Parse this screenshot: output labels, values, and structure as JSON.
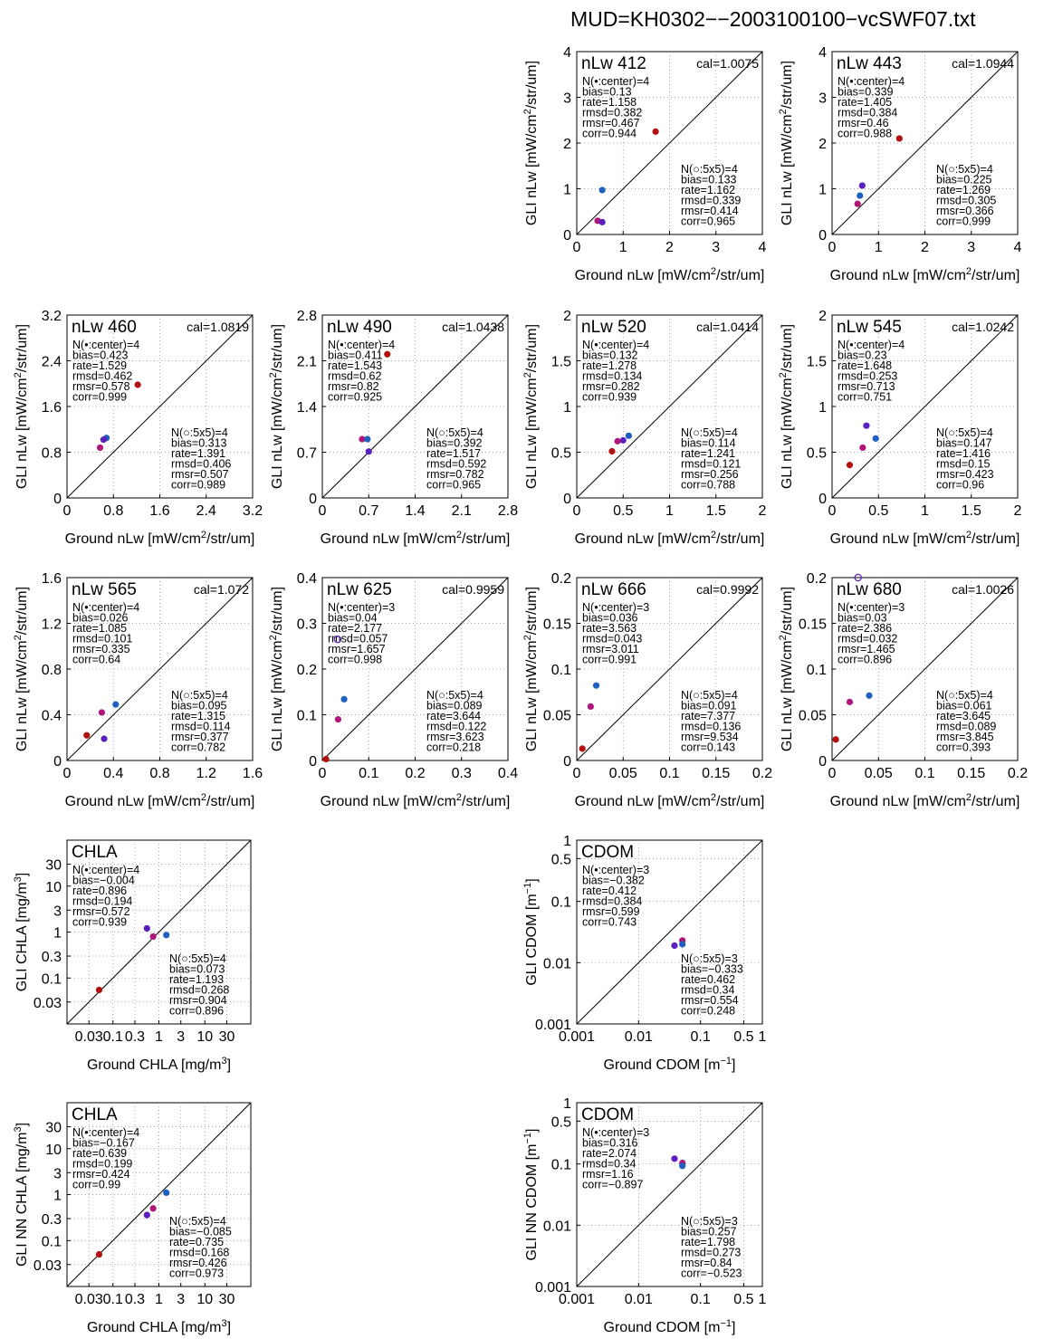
{
  "title": "MUD=KH0302−−2003100100−vcSWF07.txt",
  "chart_data": [
    {
      "type": "scatter",
      "name": "nLw 412",
      "cal": "cal=1.0075",
      "scale": "linear",
      "lim": [
        0,
        4
      ],
      "ticks": [
        0,
        1,
        2,
        3,
        4
      ],
      "tick_labels": [
        "0",
        "1",
        "2",
        "3",
        "4"
      ],
      "xlabel": "Ground nLw [mW/cm2/str/um]",
      "ylabel": "GLI nLw [mW/cm2/str/um]",
      "stats_center": [
        "N(•:center)=4",
        "bias=0.13",
        "rate=1.158",
        "rmsd=0.382",
        "rmsr=0.467",
        "corr=0.944"
      ],
      "stats_5x5": [
        "N(○:5x5)=4",
        "bias=0.133",
        "rate=1.162",
        "rmsd=0.339",
        "rmsr=0.414",
        "corr=0.965"
      ],
      "points": [
        {
          "x": 0.55,
          "y": 0.97,
          "c": "#1f5fbf"
        },
        {
          "x": 0.45,
          "y": 0.3,
          "c": "#b0157a"
        },
        {
          "x": 0.55,
          "y": 0.27,
          "c": "#5a1fbf"
        },
        {
          "x": 1.7,
          "y": 2.25,
          "c": "#b30f0f"
        }
      ]
    },
    {
      "type": "scatter",
      "name": "nLw 443",
      "cal": "cal=1.0944",
      "scale": "linear",
      "lim": [
        0,
        4
      ],
      "ticks": [
        0,
        1,
        2,
        3,
        4
      ],
      "tick_labels": [
        "0",
        "1",
        "2",
        "3",
        "4"
      ],
      "xlabel": "Ground nLw [mW/cm2/str/um]",
      "ylabel": "GLI nLw [mW/cm2/str/um]",
      "stats_center": [
        "N(•:center)=4",
        "bias=0.339",
        "rate=1.405",
        "rmsd=0.384",
        "rmsr=0.46",
        "corr=0.988"
      ],
      "stats_5x5": [
        "N(○:5x5)=4",
        "bias=0.225",
        "rate=1.269",
        "rmsd=0.305",
        "rmsr=0.366",
        "corr=0.999"
      ],
      "points": [
        {
          "x": 0.65,
          "y": 1.07,
          "c": "#5a1fbf"
        },
        {
          "x": 0.6,
          "y": 0.85,
          "c": "#1f5fbf"
        },
        {
          "x": 0.55,
          "y": 0.67,
          "c": "#b0157a"
        },
        {
          "x": 1.45,
          "y": 2.1,
          "c": "#b30f0f"
        }
      ]
    },
    {
      "type": "scatter",
      "name": "nLw 460",
      "cal": "cal=1.0819",
      "scale": "linear",
      "lim": [
        0,
        3.2
      ],
      "ticks": [
        0,
        0.8,
        1.6,
        2.4,
        3.2
      ],
      "tick_labels": [
        "0",
        "0.8",
        "1.6",
        "2.4",
        "3.2"
      ],
      "xlabel": "Ground nLw [mW/cm2/str/um]",
      "ylabel": "GLI nLw [mW/cm2/str/um]",
      "stats_center": [
        "N(•:center)=4",
        "bias=0.423",
        "rate=1.529",
        "rmsd=0.462",
        "rmsr=0.578",
        "corr=0.999"
      ],
      "stats_5x5": [
        "N(○:5x5)=4",
        "bias=0.313",
        "rate=1.391",
        "rmsd=0.406",
        "rmsr=0.507",
        "corr=0.989"
      ],
      "points": [
        {
          "x": 0.68,
          "y": 1.05,
          "c": "#1f5fbf"
        },
        {
          "x": 0.63,
          "y": 1.02,
          "c": "#5a1fbf"
        },
        {
          "x": 0.57,
          "y": 0.88,
          "c": "#b0157a"
        },
        {
          "x": 1.22,
          "y": 1.98,
          "c": "#b30f0f"
        }
      ]
    },
    {
      "type": "scatter",
      "name": "nLw 490",
      "cal": "cal=1.0438",
      "scale": "linear",
      "lim": [
        0,
        2.8
      ],
      "ticks": [
        0,
        0.7,
        1.4,
        2.1,
        2.8
      ],
      "tick_labels": [
        "0",
        "0.7",
        "1.4",
        "2.1",
        "2.8"
      ],
      "xlabel": "Ground nLw [mW/cm2/str/um]",
      "ylabel": "GLI nLw [mW/cm2/str/um]",
      "stats_center": [
        "N(•:center)=4",
        "bias=0.411",
        "rate=1.543",
        "rmsd=0.62",
        "rmsr=0.82",
        "corr=0.925"
      ],
      "stats_5x5": [
        "N(○:5x5)=4",
        "bias=0.392",
        "rate=1.517",
        "rmsd=0.592",
        "rmsr=0.782",
        "corr=0.965"
      ],
      "points": [
        {
          "x": 0.6,
          "y": 0.9,
          "c": "#b0157a"
        },
        {
          "x": 0.68,
          "y": 0.9,
          "c": "#1f5fbf"
        },
        {
          "x": 0.7,
          "y": 0.71,
          "c": "#5a1fbf"
        },
        {
          "x": 0.98,
          "y": 2.2,
          "c": "#b30f0f"
        }
      ]
    },
    {
      "type": "scatter",
      "name": "nLw 520",
      "cal": "cal=1.0414",
      "scale": "linear",
      "lim": [
        0,
        2
      ],
      "ticks": [
        0,
        0.5,
        1,
        1.5,
        2
      ],
      "tick_labels": [
        "0",
        "0.5",
        "1",
        "1.5",
        "2"
      ],
      "xlabel": "Ground nLw [mW/cm2/str/um]",
      "ylabel": "GLI nLw [mW/cm2/str/um]",
      "stats_center": [
        "N(•:center)=4",
        "bias=0.132",
        "rate=1.278",
        "rmsd=0.134",
        "rmsr=0.282",
        "corr=0.939"
      ],
      "stats_5x5": [
        "N(○:5x5)=4",
        "bias=0.114",
        "rate=1.241",
        "rmsd=0.121",
        "rmsr=0.256",
        "corr=0.788"
      ],
      "points": [
        {
          "x": 0.56,
          "y": 0.68,
          "c": "#1f5fbf"
        },
        {
          "x": 0.5,
          "y": 0.63,
          "c": "#5a1fbf"
        },
        {
          "x": 0.44,
          "y": 0.62,
          "c": "#b0157a"
        },
        {
          "x": 0.38,
          "y": 0.51,
          "c": "#b30f0f"
        }
      ]
    },
    {
      "type": "scatter",
      "name": "nLw 545",
      "cal": "cal=1.0242",
      "scale": "linear",
      "lim": [
        0,
        2
      ],
      "ticks": [
        0,
        0.5,
        1,
        1.5,
        2
      ],
      "tick_labels": [
        "0",
        "0.5",
        "1",
        "1.5",
        "2"
      ],
      "xlabel": "Ground nLw [mW/cm2/str/um]",
      "ylabel": "GLI nLw [mW/cm2/str/um]",
      "stats_center": [
        "N(•:center)=4",
        "bias=0.23",
        "rate=1.648",
        "rmsd=0.253",
        "rmsr=0.713",
        "corr=0.751"
      ],
      "stats_5x5": [
        "N(○:5x5)=4",
        "bias=0.147",
        "rate=1.416",
        "rmsd=0.15",
        "rmsr=0.423",
        "corr=0.96"
      ],
      "points": [
        {
          "x": 0.37,
          "y": 0.79,
          "c": "#5a1fbf"
        },
        {
          "x": 0.47,
          "y": 0.65,
          "c": "#1f5fbf"
        },
        {
          "x": 0.33,
          "y": 0.55,
          "c": "#b0157a"
        },
        {
          "x": 0.19,
          "y": 0.36,
          "c": "#b30f0f"
        }
      ]
    },
    {
      "type": "scatter",
      "name": "nLw 565",
      "cal": "cal=1.072",
      "scale": "linear",
      "lim": [
        0,
        1.6
      ],
      "ticks": [
        0,
        0.4,
        0.8,
        1.2,
        1.6
      ],
      "tick_labels": [
        "0",
        "0.4",
        "0.8",
        "1.2",
        "1.6"
      ],
      "xlabel": "Ground nLw [mW/cm2/str/um]",
      "ylabel": "GLI nLw [mW/cm2/str/um]",
      "stats_center": [
        "N(•:center)=4",
        "bias=0.026",
        "rate=1.085",
        "rmsd=0.101",
        "rmsr=0.335",
        "corr=0.64"
      ],
      "stats_5x5": [
        "N(○:5x5)=4",
        "bias=0.095",
        "rate=1.315",
        "rmsd=0.114",
        "rmsr=0.377",
        "corr=0.782"
      ],
      "points": [
        {
          "x": 0.42,
          "y": 0.49,
          "c": "#1f5fbf"
        },
        {
          "x": 0.3,
          "y": 0.42,
          "c": "#b0157a"
        },
        {
          "x": 0.32,
          "y": 0.19,
          "c": "#5a1fbf"
        },
        {
          "x": 0.17,
          "y": 0.22,
          "c": "#b30f0f"
        }
      ]
    },
    {
      "type": "scatter",
      "name": "nLw 625",
      "cal": "cal=0.9959",
      "scale": "linear",
      "lim": [
        0,
        0.4
      ],
      "ticks": [
        0,
        0.1,
        0.2,
        0.3,
        0.4
      ],
      "tick_labels": [
        "0",
        "0.1",
        "0.2",
        "0.3",
        "0.4"
      ],
      "xlabel": "Ground nLw [mW/cm2/str/um]",
      "ylabel": "GLI nLw [mW/cm2/str/um]",
      "stats_center": [
        "N(•:center)=3",
        "bias=0.04",
        "rate=2.177",
        "rmsd=0.057",
        "rmsr=1.657",
        "corr=0.998"
      ],
      "stats_5x5": [
        "N(○:5x5)=4",
        "bias=0.089",
        "rate=3.644",
        "rmsd=0.122",
        "rmsr=3.623",
        "corr=0.218"
      ],
      "points": [
        {
          "x": 0.047,
          "y": 0.134,
          "c": "#1f5fbf"
        },
        {
          "x": 0.034,
          "y": 0.09,
          "c": "#b0157a"
        },
        {
          "x": 0.008,
          "y": 0.003,
          "c": "#b30f0f"
        },
        {
          "x": 0.033,
          "y": 0.265,
          "c": "#5a1fbf",
          "open": true
        }
      ]
    },
    {
      "type": "scatter",
      "name": "nLw 666",
      "cal": "cal=0.9992",
      "scale": "linear",
      "lim": [
        0,
        0.2
      ],
      "ticks": [
        0,
        0.05,
        0.1,
        0.15,
        0.2
      ],
      "tick_labels": [
        "0",
        "0.05",
        "0.1",
        "0.15",
        "0.2"
      ],
      "xlabel": "Ground nLw [mW/cm2/str/um]",
      "ylabel": "GLI nLw [mW/cm2/str/um]",
      "stats_center": [
        "N(•:center)=3",
        "bias=0.036",
        "rate=3.563",
        "rmsd=0.043",
        "rmsr=3.011",
        "corr=0.991"
      ],
      "stats_5x5": [
        "N(○:5x5)=4",
        "bias=0.091",
        "rate=7.377",
        "rmsd=0.136",
        "rmsr=9.534",
        "corr=0.143"
      ],
      "points": [
        {
          "x": 0.021,
          "y": 0.082,
          "c": "#1f5fbf"
        },
        {
          "x": 0.015,
          "y": 0.059,
          "c": "#b0157a"
        },
        {
          "x": 0.006,
          "y": 0.013,
          "c": "#b30f0f"
        }
      ]
    },
    {
      "type": "scatter",
      "name": "nLw 680",
      "cal": "cal=1.0026",
      "scale": "linear",
      "lim": [
        0,
        0.2
      ],
      "ticks": [
        0,
        0.05,
        0.1,
        0.15,
        0.2
      ],
      "tick_labels": [
        "0",
        "0.05",
        "0.1",
        "0.15",
        "0.2"
      ],
      "xlabel": "Ground nLw [mW/cm2/str/um]",
      "ylabel": "GLI nLw [mW/cm2/str/um]",
      "stats_center": [
        "N(•:center)=3",
        "bias=0.03",
        "rate=2.386",
        "rmsd=0.032",
        "rmsr=1.465",
        "corr=0.896"
      ],
      "stats_5x5": [
        "N(○:5x5)=4",
        "bias=0.061",
        "rate=3.645",
        "rmsd=0.089",
        "rmsr=3.845",
        "corr=0.393"
      ],
      "points": [
        {
          "x": 0.04,
          "y": 0.071,
          "c": "#1f5fbf"
        },
        {
          "x": 0.019,
          "y": 0.064,
          "c": "#b0157a"
        },
        {
          "x": 0.004,
          "y": 0.023,
          "c": "#b30f0f"
        },
        {
          "x": 0.028,
          "y": 0.2,
          "c": "#5a1fbf",
          "open": true
        }
      ]
    },
    {
      "type": "scatter",
      "name": "CHLA",
      "scale": "log",
      "lim": [
        0.01,
        100
      ],
      "ticks": [
        0.03,
        0.1,
        0.3,
        1,
        3,
        10,
        30
      ],
      "tick_labels": [
        "0.03",
        "0.1",
        "0.3",
        "1",
        "3",
        "10",
        "30"
      ],
      "xlabel": "Ground CHLA [mg/m3]",
      "ylabel": "GLI CHLA [mg/m3]",
      "stats_center": [
        "N(•:center)=4",
        "bias=−0.004",
        "rate=0.896",
        "rmsd=0.194",
        "rmsr=0.572",
        "corr=0.939"
      ],
      "stats_5x5": [
        "N(○:5x5)=4",
        "bias=0.073",
        "rate=1.193",
        "rmsd=0.268",
        "rmsr=0.904",
        "corr=0.896"
      ],
      "points": [
        {
          "x": 0.55,
          "y": 1.2,
          "c": "#5a1fbf"
        },
        {
          "x": 0.75,
          "y": 0.8,
          "c": "#b0157a"
        },
        {
          "x": 1.45,
          "y": 0.86,
          "c": "#1f5fbf"
        },
        {
          "x": 0.05,
          "y": 0.055,
          "c": "#b30f0f"
        }
      ]
    },
    {
      "type": "scatter",
      "name": "CDOM",
      "scale": "log",
      "lim": [
        0.001,
        1
      ],
      "ticks": [
        0.001,
        0.01,
        0.1,
        0.5,
        1
      ],
      "tick_labels": [
        "0.001",
        "0.01",
        "0.1",
        "0.5",
        "1"
      ],
      "xlabel": "Ground CDOM [m−1]",
      "ylabel": "GLI CDOM [m−1]",
      "stats_center": [
        "N(•:center)=3",
        "bias=−0.382",
        "rate=0.412",
        "rmsd=0.384",
        "rmsr=0.599",
        "corr=0.743"
      ],
      "stats_5x5": [
        "N(○:5x5)=3",
        "bias=−0.333",
        "rate=0.462",
        "rmsd=0.34",
        "rmsr=0.554",
        "corr=0.248"
      ],
      "points": [
        {
          "x": 0.051,
          "y": 0.023,
          "c": "#b0157a"
        },
        {
          "x": 0.051,
          "y": 0.02,
          "c": "#1f5fbf"
        },
        {
          "x": 0.038,
          "y": 0.019,
          "c": "#5a1fbf"
        }
      ]
    },
    {
      "type": "scatter",
      "name": "CHLA",
      "scale": "log",
      "lim": [
        0.01,
        100
      ],
      "ticks": [
        0.03,
        0.1,
        0.3,
        1,
        3,
        10,
        30
      ],
      "tick_labels": [
        "0.03",
        "0.1",
        "0.3",
        "1",
        "3",
        "10",
        "30"
      ],
      "xlabel": "Ground CHLA [mg/m3]",
      "ylabel": "GLI NN CHLA [mg/m3]",
      "stats_center": [
        "N(•:center)=4",
        "bias=−0.167",
        "rate=0.639",
        "rmsd=0.199",
        "rmsr=0.424",
        "corr=0.99"
      ],
      "stats_5x5": [
        "N(○:5x5)=4",
        "bias=−0.085",
        "rate=0.735",
        "rmsd=0.168",
        "rmsr=0.426",
        "corr=0.973"
      ],
      "points": [
        {
          "x": 1.45,
          "y": 1.1,
          "c": "#1f5fbf"
        },
        {
          "x": 0.75,
          "y": 0.5,
          "c": "#b0157a"
        },
        {
          "x": 0.55,
          "y": 0.36,
          "c": "#5a1fbf"
        },
        {
          "x": 0.05,
          "y": 0.05,
          "c": "#b30f0f"
        }
      ]
    },
    {
      "type": "scatter",
      "name": "CDOM",
      "scale": "log",
      "lim": [
        0.001,
        1
      ],
      "ticks": [
        0.001,
        0.01,
        0.1,
        0.5,
        1
      ],
      "tick_labels": [
        "0.001",
        "0.01",
        "0.1",
        "0.5",
        "1"
      ],
      "xlabel": "Ground CDOM [m−1]",
      "ylabel": "GLI NN CDOM [m−1]",
      "stats_center": [
        "N(•:center)=3",
        "bias=0.316",
        "rate=2.074",
        "rmsd=0.34",
        "rmsr=1.16",
        "corr=−0.897"
      ],
      "stats_5x5": [
        "N(○:5x5)=3",
        "bias=0.257",
        "rate=1.798",
        "rmsd=0.273",
        "rmsr=0.84",
        "corr=−0.523"
      ],
      "points": [
        {
          "x": 0.038,
          "y": 0.122,
          "c": "#5a1fbf"
        },
        {
          "x": 0.051,
          "y": 0.104,
          "c": "#b0157a"
        },
        {
          "x": 0.051,
          "y": 0.093,
          "c": "#1f5fbf"
        }
      ]
    }
  ]
}
